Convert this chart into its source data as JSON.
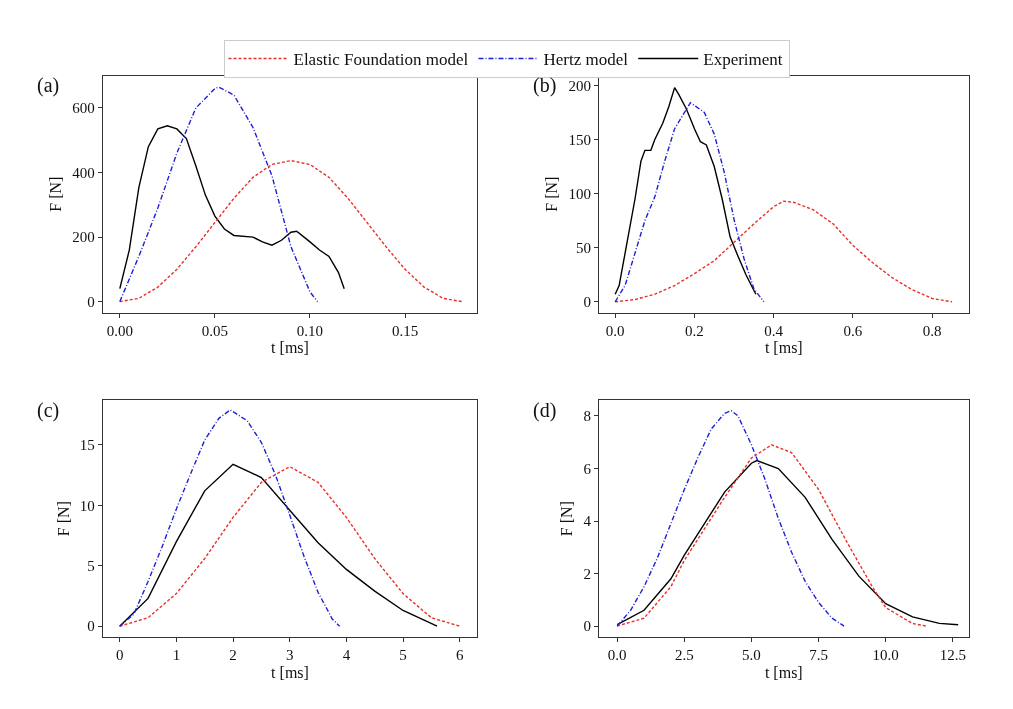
{
  "chart_data": [
    {
      "type": "line",
      "title": "(a)",
      "xlabel": "t [ms]",
      "ylabel": "F [N]",
      "xlim": [
        -0.009,
        0.188
      ],
      "ylim": [
        -34,
        700
      ],
      "xticks": [
        {
          "value": 0,
          "label": "0.00"
        },
        0.05,
        {
          "value": 0.1,
          "label": "0.10"
        },
        0.15
      ],
      "yticks": [
        0,
        200,
        400,
        600
      ],
      "legend": "top",
      "grid": false,
      "series": [
        {
          "name": "Elastic Foundation model",
          "color": "#e8302a",
          "line_style": "dashed",
          "x": [
            0,
            0.01,
            0.02,
            0.03,
            0.04,
            0.05,
            0.06,
            0.07,
            0.08,
            0.09,
            0.1,
            0.11,
            0.12,
            0.13,
            0.14,
            0.15,
            0.16,
            0.17,
            0.18
          ],
          "values": [
            0,
            10,
            45,
            100,
            170,
            245,
            320,
            385,
            425,
            437,
            425,
            385,
            320,
            245,
            170,
            100,
            45,
            10,
            0
          ]
        },
        {
          "name": "Hertz model",
          "color": "#1f1fd6",
          "line_style": "dashdot",
          "x": [
            0,
            0.01,
            0.02,
            0.03,
            0.04,
            0.05,
            0.052,
            0.06,
            0.07,
            0.08,
            0.09,
            0.1,
            0.104
          ],
          "values": [
            0,
            140,
            290,
            460,
            600,
            660,
            665,
            640,
            540,
            390,
            170,
            30,
            0
          ]
        },
        {
          "name": "Experiment",
          "color": "#000000",
          "line_style": "solid",
          "x": [
            0,
            0.005,
            0.01,
            0.015,
            0.02,
            0.025,
            0.03,
            0.035,
            0.04,
            0.045,
            0.05,
            0.055,
            0.06,
            0.07,
            0.075,
            0.08,
            0.085,
            0.09,
            0.093,
            0.1,
            0.105,
            0.11,
            0.115,
            0.118
          ],
          "values": [
            40,
            160,
            353,
            480,
            535,
            545,
            535,
            505,
            420,
            330,
            265,
            225,
            205,
            200,
            185,
            175,
            190,
            215,
            218,
            185,
            160,
            140,
            90,
            40
          ]
        }
      ]
    },
    {
      "type": "line",
      "title": "(b)",
      "xlabel": "t [ms]",
      "ylabel": "F [N]",
      "xlim": [
        -0.041,
        0.892
      ],
      "ylim": [
        -10,
        209
      ],
      "xticks": [
        {
          "value": 0,
          "label": "0.0"
        },
        0.2,
        0.4,
        0.6,
        0.8
      ],
      "yticks": [
        0,
        50,
        100,
        150,
        200
      ],
      "legend": "top",
      "grid": false,
      "series": [
        {
          "name": "Elastic Foundation model",
          "color": "#e8302a",
          "line_style": "dashed",
          "x": [
            0,
            0.05,
            0.1,
            0.15,
            0.2,
            0.25,
            0.3,
            0.35,
            0.4,
            0.425,
            0.45,
            0.5,
            0.55,
            0.6,
            0.65,
            0.7,
            0.75,
            0.8,
            0.85
          ],
          "values": [
            0,
            2,
            7,
            15,
            26,
            38,
            55,
            72,
            88,
            93,
            92,
            85,
            72,
            52,
            36,
            22,
            11,
            3,
            0
          ]
        },
        {
          "name": "Hertz model",
          "color": "#1f1fd6",
          "line_style": "dashdot",
          "x": [
            0,
            0.025,
            0.05,
            0.075,
            0.1,
            0.125,
            0.15,
            0.19,
            0.225,
            0.25,
            0.275,
            0.3,
            0.325,
            0.35,
            0.375
          ],
          "values": [
            0,
            15,
            45,
            75,
            97,
            130,
            160,
            184,
            175,
            155,
            120,
            76,
            40,
            12,
            0
          ]
        },
        {
          "name": "Experiment",
          "color": "#000000",
          "line_style": "solid",
          "x": [
            0,
            0.01,
            0.025,
            0.05,
            0.065,
            0.075,
            0.09,
            0.1,
            0.12,
            0.135,
            0.15,
            0.16,
            0.18,
            0.2,
            0.215,
            0.23,
            0.25,
            0.27,
            0.29,
            0.31,
            0.33,
            0.355
          ],
          "values": [
            7,
            15,
            45,
            95,
            130,
            140,
            140,
            150,
            165,
            180,
            198,
            192,
            178,
            160,
            148,
            145,
            125,
            95,
            60,
            42,
            25,
            7
          ]
        }
      ]
    },
    {
      "type": "line",
      "title": "(c)",
      "xlabel": "t [ms]",
      "ylabel": "F [N]",
      "xlim": [
        -0.3,
        6.31
      ],
      "ylim": [
        -0.9,
        18.7
      ],
      "xticks": [
        0,
        1,
        2,
        3,
        4,
        5,
        6
      ],
      "yticks": [
        0,
        5,
        10,
        15
      ],
      "legend": "top",
      "grid": false,
      "series": [
        {
          "name": "Elastic Foundation model",
          "color": "#e8302a",
          "line_style": "dashed",
          "x": [
            0,
            0.5,
            1,
            1.5,
            2,
            2.5,
            3,
            3.5,
            4,
            4.5,
            5,
            5.5,
            6
          ],
          "values": [
            0,
            0.7,
            2.7,
            5.6,
            9,
            11.9,
            13.2,
            11.9,
            9,
            5.6,
            2.7,
            0.7,
            0
          ]
        },
        {
          "name": "Hertz model",
          "color": "#1f1fd6",
          "line_style": "dashdot",
          "x": [
            0,
            0.25,
            0.5,
            0.75,
            1,
            1.25,
            1.5,
            1.75,
            1.95,
            2.25,
            2.5,
            2.75,
            3,
            3.25,
            3.5,
            3.75,
            3.88
          ],
          "values": [
            0,
            1,
            3.7,
            6.6,
            9.7,
            12.6,
            15.4,
            17.2,
            17.9,
            17,
            15.2,
            12.5,
            9.2,
            5.8,
            2.8,
            0.6,
            0
          ]
        },
        {
          "name": "Experiment",
          "color": "#000000",
          "line_style": "solid",
          "x": [
            0,
            0.5,
            1,
            1.5,
            2,
            2.5,
            3,
            3.5,
            4,
            4.5,
            5,
            5.6
          ],
          "values": [
            0,
            2.3,
            7,
            11.2,
            13.4,
            12.3,
            9.6,
            6.9,
            4.7,
            2.9,
            1.3,
            0
          ]
        }
      ]
    },
    {
      "type": "line",
      "title": "(d)",
      "xlabel": "t [ms]",
      "ylabel": "F [N]",
      "xlim": [
        -0.68,
        13.09
      ],
      "ylim": [
        -0.42,
        8.6
      ],
      "xticks": [
        {
          "value": 0,
          "label": "0.0"
        },
        2.5,
        {
          "value": 5,
          "label": "5.0"
        },
        7.5,
        {
          "value": 10,
          "label": "10.0"
        },
        12.5
      ],
      "yticks": [
        0,
        2,
        4,
        6,
        8
      ],
      "legend": "top",
      "grid": false,
      "series": [
        {
          "name": "Elastic Foundation model",
          "color": "#e8302a",
          "line_style": "dashed",
          "x": [
            0,
            1,
            2,
            2.5,
            3,
            4,
            5,
            5.75,
            6.5,
            7.5,
            8.5,
            9.5,
            10,
            11,
            11.5
          ],
          "values": [
            0,
            0.3,
            1.5,
            2.5,
            3.3,
            4.9,
            6.4,
            6.9,
            6.6,
            5.2,
            3.3,
            1.5,
            0.7,
            0.1,
            0
          ]
        },
        {
          "name": "Hertz model",
          "color": "#1f1fd6",
          "line_style": "dashdot",
          "x": [
            0,
            0.5,
            1,
            1.5,
            2,
            2.5,
            3,
            3.5,
            4,
            4.25,
            4.5,
            5,
            5.5,
            6,
            6.5,
            7,
            7.5,
            8,
            8.45
          ],
          "values": [
            0,
            0.6,
            1.5,
            2.6,
            3.9,
            5.2,
            6.4,
            7.5,
            8.1,
            8.2,
            8.0,
            6.9,
            5.6,
            4.1,
            2.8,
            1.7,
            0.9,
            0.3,
            0
          ]
        },
        {
          "name": "Experiment",
          "color": "#000000",
          "line_style": "solid",
          "x": [
            0,
            1,
            2,
            2.5,
            3,
            4,
            5,
            5.2,
            6,
            7,
            8,
            9,
            10,
            11,
            12,
            12.7
          ],
          "values": [
            0.05,
            0.6,
            1.8,
            2.7,
            3.5,
            5.1,
            6.2,
            6.3,
            6.0,
            4.9,
            3.3,
            1.9,
            0.85,
            0.35,
            0.1,
            0.05
          ]
        }
      ]
    }
  ]
}
